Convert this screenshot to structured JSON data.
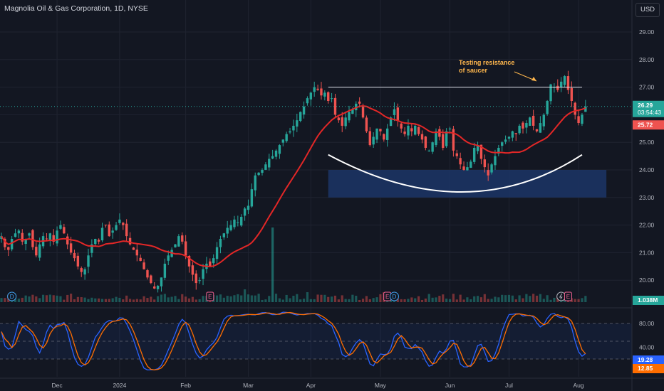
{
  "header": {
    "title": "Magnolia Oil & Gas Corporation, 1D, NYSE",
    "currency": "USD"
  },
  "colors": {
    "bg": "#131722",
    "up": "#26a69a",
    "down": "#ef5350",
    "ma": "#e32727",
    "stoch_k": "#2962ff",
    "stoch_d": "#ff6d00",
    "zone": "#1c3566",
    "axis_text": "#b2b5be"
  },
  "icons": [
    "dividend-icon",
    "earnings-icon",
    "split-icon"
  ],
  "annotation": {
    "text_line1": "Testing resistance",
    "text_line2": "of saucer"
  },
  "price_tags": {
    "last": "26.29",
    "countdown": "03:54:43",
    "ma": "25.72"
  },
  "volume_tag": "1.038M",
  "stoch_tags": {
    "k": "19.28",
    "d": "12.85"
  },
  "event_markers": [
    {
      "label": "D",
      "type": "dividend",
      "date_index": 3
    },
    {
      "label": "E",
      "type": "earnings",
      "date_index": 60
    },
    {
      "label": "E",
      "type": "earnings",
      "date_index": 111
    },
    {
      "label": "D",
      "type": "dividend",
      "date_index": 113
    },
    {
      "label": "",
      "type": "split",
      "date_index": 161
    },
    {
      "label": "E",
      "type": "earnings",
      "date_index": 163
    }
  ],
  "chart_data": {
    "type": "candlestick",
    "title": "Magnolia Oil & Gas Corporation, 1D, NYSE",
    "y_ticks": [
      "29.00",
      "28.00",
      "27.00",
      "26.00",
      "25.00",
      "24.00",
      "23.00",
      "22.00",
      "21.00",
      "20.00"
    ],
    "x_ticks": [
      {
        "label": "Dec",
        "i": 16
      },
      {
        "label": "2024",
        "i": 34
      },
      {
        "label": "Feb",
        "i": 53
      },
      {
        "label": "Mar",
        "i": 71
      },
      {
        "label": "Apr",
        "i": 89
      },
      {
        "label": "May",
        "i": 109
      },
      {
        "label": "Jun",
        "i": 129
      },
      {
        "label": "Jul",
        "i": 146
      },
      {
        "label": "Aug",
        "i": 166
      }
    ],
    "ylim": [
      19.4,
      29.6
    ],
    "close": [
      21.6,
      21.2,
      21.1,
      21.5,
      21.7,
      21.8,
      21.4,
      21.5,
      21.7,
      21.2,
      20.9,
      21.3,
      21.6,
      21.5,
      21.7,
      21.4,
      21.8,
      22.0,
      21.7,
      21.3,
      21.0,
      20.8,
      20.5,
      20.3,
      20.4,
      20.9,
      21.3,
      21.5,
      21.4,
      21.9,
      22.0,
      21.6,
      21.8,
      22.0,
      22.2,
      22.0,
      21.6,
      21.3,
      21.1,
      20.9,
      20.7,
      20.4,
      20.1,
      19.9,
      19.7,
      19.8,
      20.1,
      20.6,
      20.9,
      21.1,
      21.3,
      21.6,
      21.4,
      20.9,
      20.5,
      20.2,
      19.9,
      20.0,
      20.4,
      20.6,
      20.5,
      20.8,
      21.2,
      21.5,
      21.7,
      21.9,
      22.0,
      22.2,
      22.1,
      22.3,
      22.6,
      22.7,
      23.3,
      23.8,
      23.9,
      24.0,
      24.2,
      24.4,
      24.5,
      24.7,
      24.9,
      25.1,
      25.3,
      25.4,
      25.6,
      25.8,
      26.1,
      26.3,
      26.6,
      26.8,
      27.0,
      26.9,
      26.7,
      26.8,
      26.5,
      26.6,
      26.0,
      25.8,
      25.6,
      25.9,
      26.1,
      26.2,
      26.4,
      26.4,
      25.9,
      25.4,
      24.9,
      25.2,
      25.5,
      25.4,
      25.1,
      25.5,
      25.9,
      26.2,
      25.8,
      25.5,
      25.3,
      25.6,
      25.4,
      25.6,
      25.3,
      25.1,
      24.8,
      24.7,
      25.0,
      25.4,
      25.2,
      24.8,
      25.4,
      25.5,
      24.7,
      24.5,
      24.2,
      24.0,
      24.1,
      24.3,
      24.8,
      24.9,
      24.4,
      24.1,
      23.8,
      24.2,
      24.5,
      24.8,
      25.0,
      25.1,
      25.2,
      25.4,
      25.3,
      25.6,
      25.5,
      25.7,
      25.9,
      25.6,
      25.4,
      25.7,
      26.0,
      26.5,
      27.1,
      27.0,
      26.9,
      27.2,
      27.4,
      26.9,
      26.5,
      26.0,
      25.7,
      26.0,
      26.3
    ],
    "ma_period": 20,
    "zone": {
      "y_top": 24.0,
      "y_bottom": 23.0,
      "i_start": 94,
      "i_end": 174
    },
    "resistance": {
      "y": 27.0,
      "i_start": 94,
      "i_end": 167
    },
    "saucer": {
      "i_start": 94,
      "i_mid": 134,
      "i_end": 167,
      "y_edge": 24.55,
      "y_mid": 23.2
    },
    "stoch_ticks": [
      "80.00",
      "40.00"
    ],
    "stoch_levels": {
      "upper": 80,
      "middle": 50,
      "lower": 20
    }
  }
}
